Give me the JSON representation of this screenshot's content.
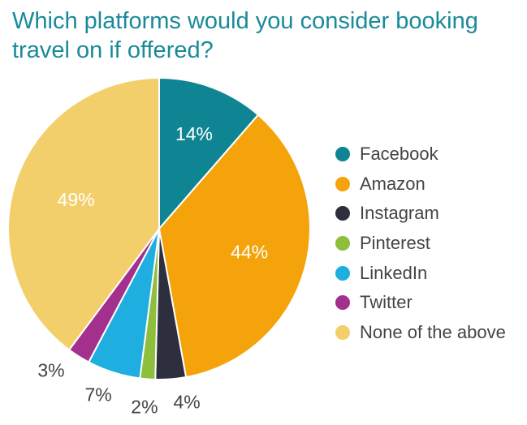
{
  "title": "Which platforms would you consider booking travel on if offered?",
  "chart_data": {
    "type": "pie",
    "title": "Which platforms would you consider booking travel on if offered?",
    "series": [
      {
        "name": "Facebook",
        "value": 14,
        "label": "14%",
        "color": "#0f8593"
      },
      {
        "name": "Amazon",
        "value": 44,
        "label": "44%",
        "color": "#f4a30a"
      },
      {
        "name": "Instagram",
        "value": 4,
        "label": "4%",
        "color": "#2e2f3e"
      },
      {
        "name": "Pinterest",
        "value": 2,
        "label": "2%",
        "color": "#8dbe3c"
      },
      {
        "name": "LinkedIn",
        "value": 7,
        "label": "7%",
        "color": "#1eaedf"
      },
      {
        "name": "Twitter",
        "value": 3,
        "label": "3%",
        "color": "#a3308c"
      },
      {
        "name": "None of the above",
        "value": 49,
        "label": "49%",
        "color": "#f3cf6c"
      }
    ],
    "legend_position": "right"
  }
}
